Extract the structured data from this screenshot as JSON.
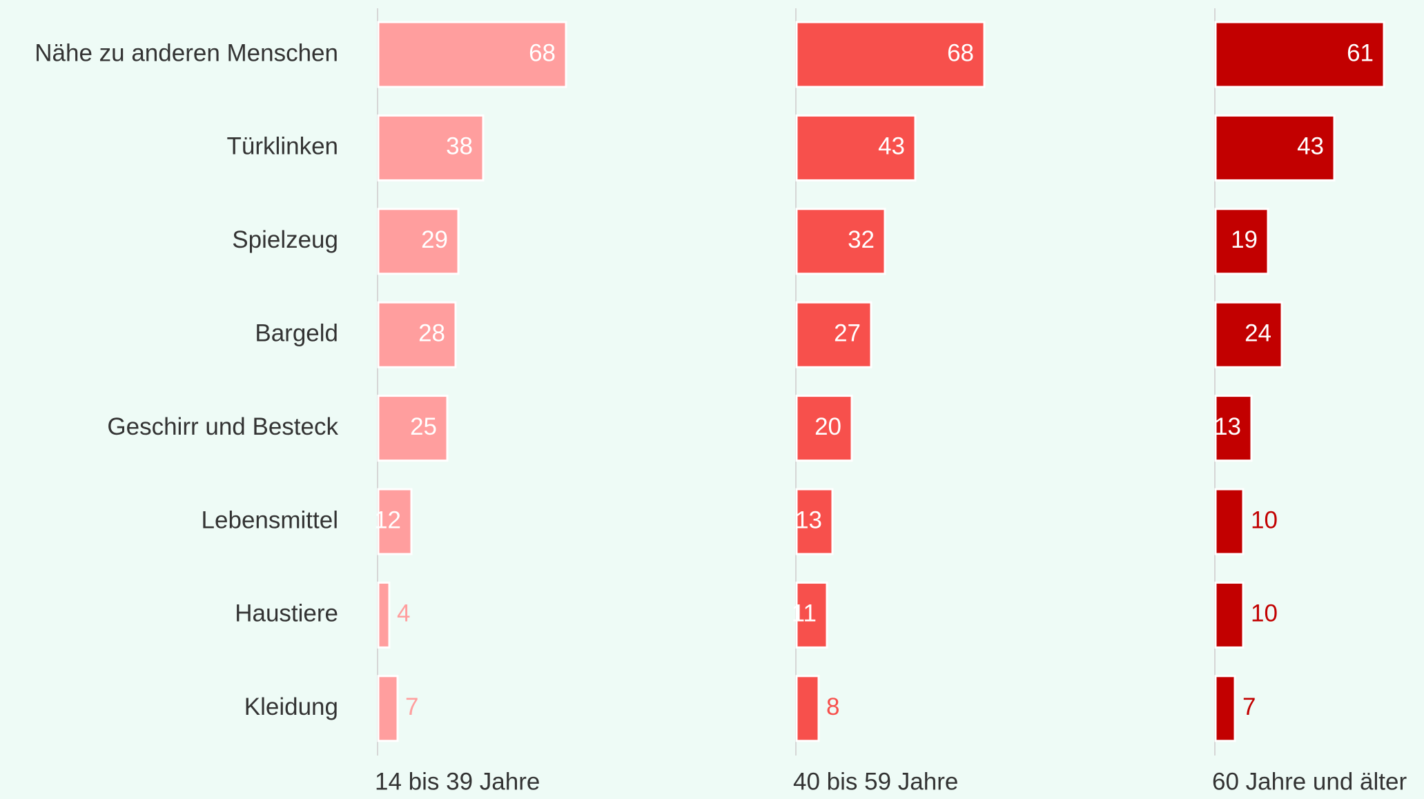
{
  "chart_data": {
    "type": "bar",
    "orientation": "horizontal",
    "layout": "small-multiples",
    "title": "",
    "categories": [
      "Nähe zu anderen Menschen",
      "Türklinken",
      "Spielzeug",
      "Bargeld",
      "Geschirr und Besteck",
      "Lebensmittel",
      "Haustiere",
      "Kleidung"
    ],
    "series": [
      {
        "name": "14 bis 39 Jahre",
        "color": "#ff9e9e",
        "values": [
          68,
          38,
          29,
          28,
          25,
          12,
          4,
          7
        ]
      },
      {
        "name": "40 bis 59 Jahre",
        "color": "#f7504c",
        "values": [
          68,
          43,
          32,
          27,
          20,
          13,
          11,
          8
        ]
      },
      {
        "name": "60 Jahre und älter",
        "color": "#c20000",
        "values": [
          61,
          43,
          19,
          24,
          13,
          10,
          10,
          7
        ]
      }
    ],
    "xlim": [
      0,
      100
    ],
    "grid": false,
    "data_labels": true,
    "colors": {
      "background": "#eefbf6",
      "category_text": "#333333",
      "axis_line": "#d6d6d6",
      "label_inside": "#ffffff"
    }
  }
}
